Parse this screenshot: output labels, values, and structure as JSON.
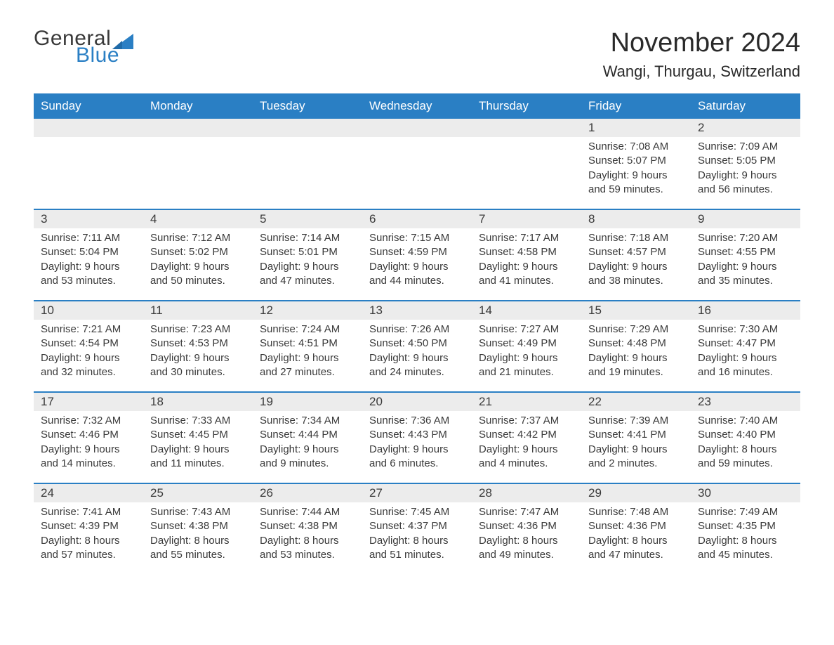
{
  "logo": {
    "general": "General",
    "blue": "Blue"
  },
  "title": "November 2024",
  "location": "Wangi, Thurgau, Switzerland",
  "colors": {
    "header_bg": "#2a7fc4",
    "header_text": "#ffffff",
    "daynum_bg": "#ececec",
    "text": "#3a3a3a",
    "row_border": "#2a7fc4",
    "page_bg": "#ffffff"
  },
  "layout": {
    "columns": 7,
    "rows": 5
  },
  "weekdays": [
    "Sunday",
    "Monday",
    "Tuesday",
    "Wednesday",
    "Thursday",
    "Friday",
    "Saturday"
  ],
  "labels": {
    "sunrise": "Sunrise:",
    "sunset": "Sunset:",
    "daylight": "Daylight:"
  },
  "weeks": [
    [
      {
        "empty": true
      },
      {
        "empty": true
      },
      {
        "empty": true
      },
      {
        "empty": true
      },
      {
        "empty": true
      },
      {
        "day": "1",
        "sunrise": "7:08 AM",
        "sunset": "5:07 PM",
        "daylight": "9 hours and 59 minutes."
      },
      {
        "day": "2",
        "sunrise": "7:09 AM",
        "sunset": "5:05 PM",
        "daylight": "9 hours and 56 minutes."
      }
    ],
    [
      {
        "day": "3",
        "sunrise": "7:11 AM",
        "sunset": "5:04 PM",
        "daylight": "9 hours and 53 minutes."
      },
      {
        "day": "4",
        "sunrise": "7:12 AM",
        "sunset": "5:02 PM",
        "daylight": "9 hours and 50 minutes."
      },
      {
        "day": "5",
        "sunrise": "7:14 AM",
        "sunset": "5:01 PM",
        "daylight": "9 hours and 47 minutes."
      },
      {
        "day": "6",
        "sunrise": "7:15 AM",
        "sunset": "4:59 PM",
        "daylight": "9 hours and 44 minutes."
      },
      {
        "day": "7",
        "sunrise": "7:17 AM",
        "sunset": "4:58 PM",
        "daylight": "9 hours and 41 minutes."
      },
      {
        "day": "8",
        "sunrise": "7:18 AM",
        "sunset": "4:57 PM",
        "daylight": "9 hours and 38 minutes."
      },
      {
        "day": "9",
        "sunrise": "7:20 AM",
        "sunset": "4:55 PM",
        "daylight": "9 hours and 35 minutes."
      }
    ],
    [
      {
        "day": "10",
        "sunrise": "7:21 AM",
        "sunset": "4:54 PM",
        "daylight": "9 hours and 32 minutes."
      },
      {
        "day": "11",
        "sunrise": "7:23 AM",
        "sunset": "4:53 PM",
        "daylight": "9 hours and 30 minutes."
      },
      {
        "day": "12",
        "sunrise": "7:24 AM",
        "sunset": "4:51 PM",
        "daylight": "9 hours and 27 minutes."
      },
      {
        "day": "13",
        "sunrise": "7:26 AM",
        "sunset": "4:50 PM",
        "daylight": "9 hours and 24 minutes."
      },
      {
        "day": "14",
        "sunrise": "7:27 AM",
        "sunset": "4:49 PM",
        "daylight": "9 hours and 21 minutes."
      },
      {
        "day": "15",
        "sunrise": "7:29 AM",
        "sunset": "4:48 PM",
        "daylight": "9 hours and 19 minutes."
      },
      {
        "day": "16",
        "sunrise": "7:30 AM",
        "sunset": "4:47 PM",
        "daylight": "9 hours and 16 minutes."
      }
    ],
    [
      {
        "day": "17",
        "sunrise": "7:32 AM",
        "sunset": "4:46 PM",
        "daylight": "9 hours and 14 minutes."
      },
      {
        "day": "18",
        "sunrise": "7:33 AM",
        "sunset": "4:45 PM",
        "daylight": "9 hours and 11 minutes."
      },
      {
        "day": "19",
        "sunrise": "7:34 AM",
        "sunset": "4:44 PM",
        "daylight": "9 hours and 9 minutes."
      },
      {
        "day": "20",
        "sunrise": "7:36 AM",
        "sunset": "4:43 PM",
        "daylight": "9 hours and 6 minutes."
      },
      {
        "day": "21",
        "sunrise": "7:37 AM",
        "sunset": "4:42 PM",
        "daylight": "9 hours and 4 minutes."
      },
      {
        "day": "22",
        "sunrise": "7:39 AM",
        "sunset": "4:41 PM",
        "daylight": "9 hours and 2 minutes."
      },
      {
        "day": "23",
        "sunrise": "7:40 AM",
        "sunset": "4:40 PM",
        "daylight": "8 hours and 59 minutes."
      }
    ],
    [
      {
        "day": "24",
        "sunrise": "7:41 AM",
        "sunset": "4:39 PM",
        "daylight": "8 hours and 57 minutes."
      },
      {
        "day": "25",
        "sunrise": "7:43 AM",
        "sunset": "4:38 PM",
        "daylight": "8 hours and 55 minutes."
      },
      {
        "day": "26",
        "sunrise": "7:44 AM",
        "sunset": "4:38 PM",
        "daylight": "8 hours and 53 minutes."
      },
      {
        "day": "27",
        "sunrise": "7:45 AM",
        "sunset": "4:37 PM",
        "daylight": "8 hours and 51 minutes."
      },
      {
        "day": "28",
        "sunrise": "7:47 AM",
        "sunset": "4:36 PM",
        "daylight": "8 hours and 49 minutes."
      },
      {
        "day": "29",
        "sunrise": "7:48 AM",
        "sunset": "4:36 PM",
        "daylight": "8 hours and 47 minutes."
      },
      {
        "day": "30",
        "sunrise": "7:49 AM",
        "sunset": "4:35 PM",
        "daylight": "8 hours and 45 minutes."
      }
    ]
  ]
}
